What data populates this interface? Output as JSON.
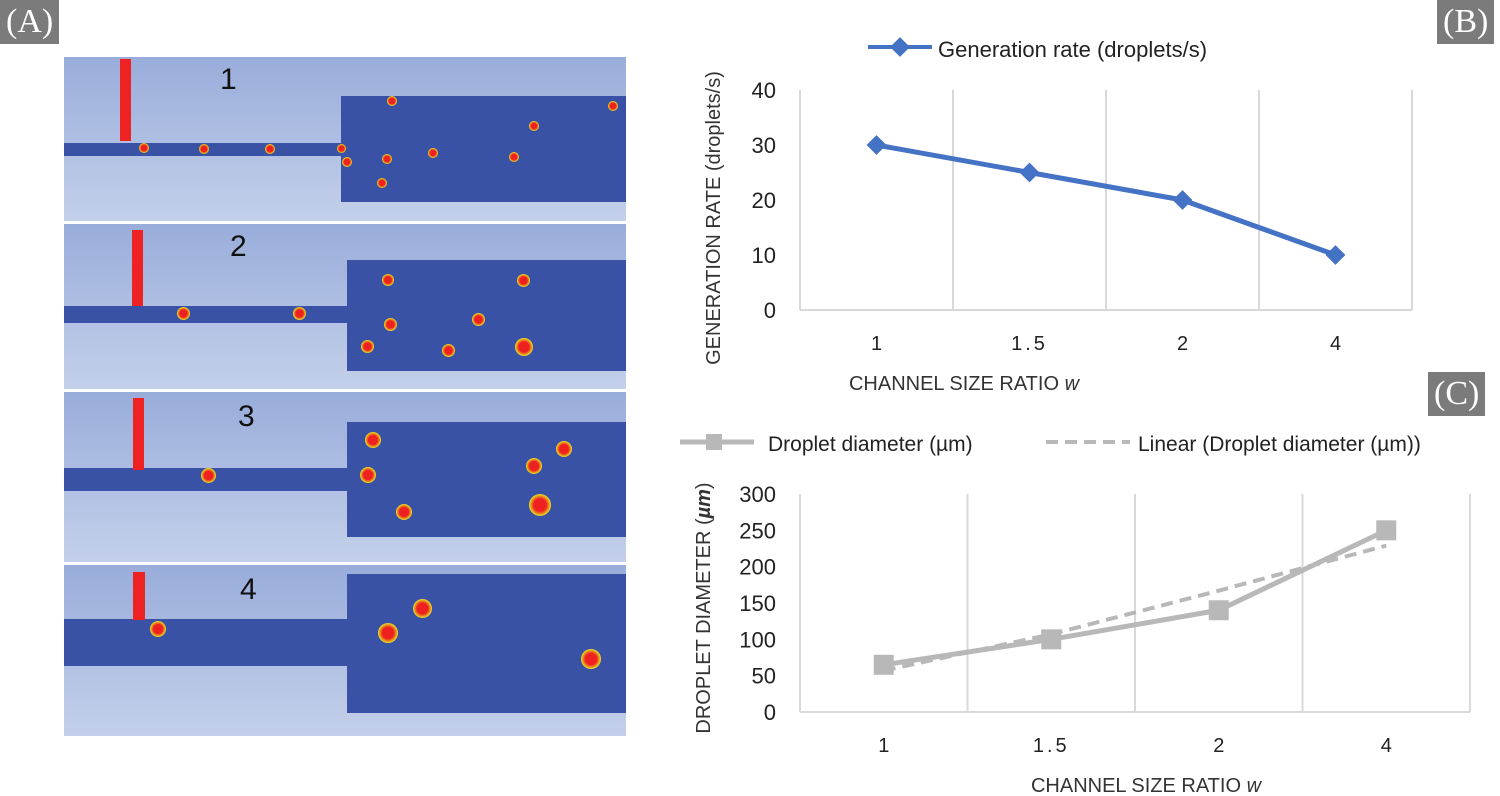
{
  "panels": {
    "a": "(A)",
    "b": "(B)",
    "c": "(C)"
  },
  "simulations": [
    {
      "label": "1"
    },
    {
      "label": "2"
    },
    {
      "label": "3"
    },
    {
      "label": "4"
    }
  ],
  "chart_data": [
    {
      "type": "line",
      "panel": "B",
      "categories": [
        "1",
        "1.5",
        "2",
        "4"
      ],
      "series": [
        {
          "name": "Generation rate (droplets/s)",
          "values": [
            30,
            25,
            20,
            10
          ],
          "color": "#4472c4",
          "marker": "diamond"
        }
      ],
      "ylabel": "GENERATION RATE (droplets/s)",
      "xlabel": "CHANNEL SIZE RATIO ",
      "xlabel_italic": "w",
      "ylim": [
        0,
        40
      ],
      "yticks": [
        "0",
        "10",
        "20",
        "30",
        "40"
      ],
      "legend": "top",
      "grid": "vertical"
    },
    {
      "type": "line",
      "panel": "C",
      "categories": [
        "1",
        "1.5",
        "2",
        "4"
      ],
      "series": [
        {
          "name": "Droplet diameter (µm)",
          "values": [
            65,
            100,
            140,
            250
          ],
          "color": "#b8b8b8",
          "marker": "square"
        },
        {
          "name": "Linear (Droplet diameter (µm))",
          "values": [
            57,
            107,
            167,
            229
          ],
          "color": "#b8b8b8",
          "dashed": true
        }
      ],
      "ylabel": "DROPLET DIAMETER (",
      "ylabel_unit": "µm",
      "ylabel_end": ")",
      "xlabel": "CHANNEL SIZE RATIO ",
      "xlabel_italic": "w",
      "ylim": [
        0,
        300
      ],
      "yticks": [
        "0",
        "50",
        "100",
        "150",
        "200",
        "250",
        "300"
      ],
      "legend": "top",
      "grid": "vertical"
    }
  ]
}
